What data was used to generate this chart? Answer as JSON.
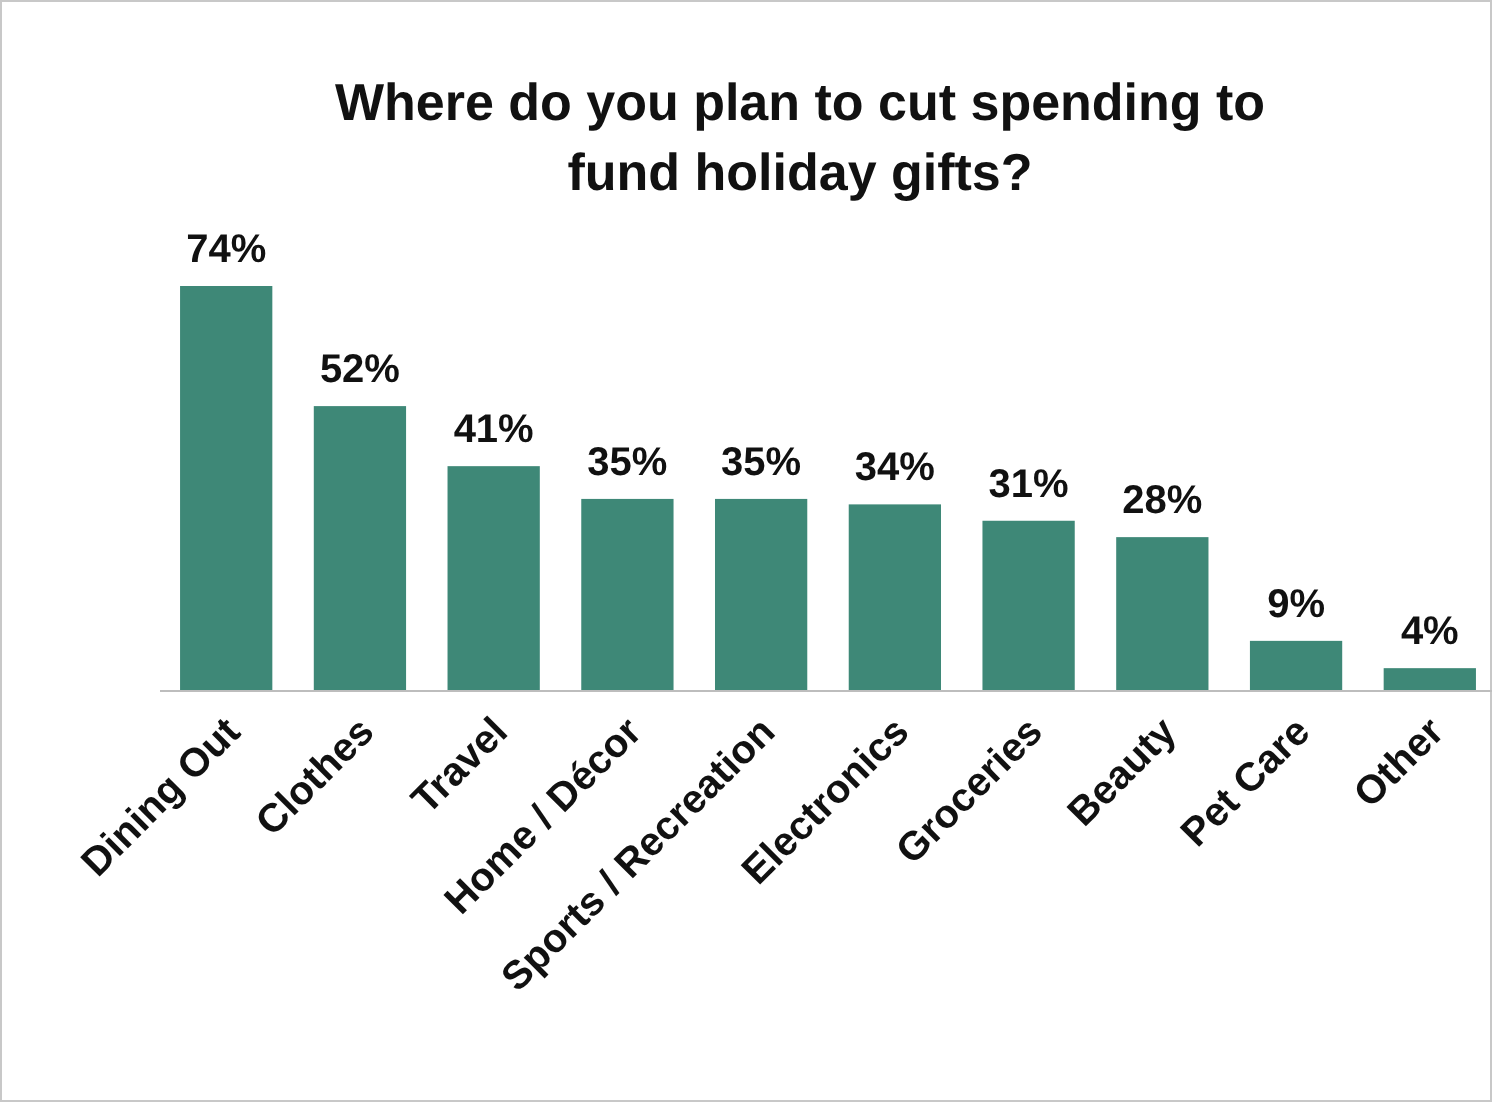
{
  "chart_data": {
    "type": "bar",
    "title": "Where do you plan to cut spending to fund holiday gifts?",
    "categories": [
      "Dining Out",
      "Clothes",
      "Travel",
      "Home / Décor",
      "Sports / Recreation",
      "Electronics",
      "Groceries",
      "Beauty",
      "Pet Care",
      "Other"
    ],
    "values": [
      74,
      52,
      41,
      35,
      35,
      34,
      31,
      28,
      9,
      4
    ],
    "value_labels": [
      "74%",
      "52%",
      "41%",
      "35%",
      "35%",
      "34%",
      "31%",
      "28%",
      "9%",
      "4%"
    ],
    "color": "#3e8877"
  }
}
